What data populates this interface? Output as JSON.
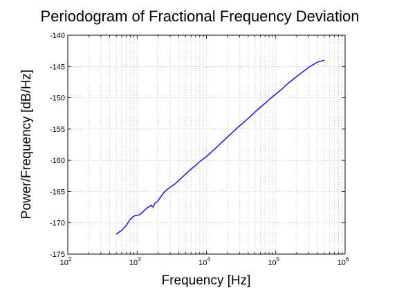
{
  "chart_data": {
    "type": "line",
    "title": "Periodogram of Fractional Frequency Deviation",
    "xlabel": "Frequency [Hz]",
    "ylabel": "Power/Frequency [dB/Hz]",
    "xscale": "log",
    "xlim": [
      100,
      1000000
    ],
    "ylim": [
      -175,
      -140
    ],
    "x_ticks": [
      {
        "base": "10",
        "exp": "2"
      },
      {
        "base": "10",
        "exp": "3"
      },
      {
        "base": "10",
        "exp": "4"
      },
      {
        "base": "10",
        "exp": "5"
      },
      {
        "base": "10",
        "exp": "6"
      }
    ],
    "y_ticks": [
      "-140",
      "-145",
      "-150",
      "-155",
      "-160",
      "-165",
      "-170",
      "-175"
    ],
    "grid": true,
    "legend": "none",
    "series": [
      {
        "color": "#0000ff",
        "x": [
          500,
          600,
          700,
          800,
          900,
          1000,
          1100,
          1200,
          1300,
          1400,
          1500,
          1600,
          1700,
          1800,
          2000,
          2200,
          2500,
          3000,
          3500,
          4000,
          5000,
          6000,
          7000,
          8000,
          10000,
          12000,
          15000,
          20000,
          25000,
          30000,
          40000,
          50000,
          60000,
          70000,
          80000,
          100000,
          120000,
          150000,
          200000,
          250000,
          300000,
          400000,
          500000
        ],
        "y": [
          -171.8,
          -171.2,
          -170.4,
          -169.4,
          -168.9,
          -168.8,
          -168.7,
          -168.3,
          -167.9,
          -167.6,
          -167.4,
          -167.2,
          -167.5,
          -166.9,
          -166.5,
          -165.8,
          -165.0,
          -164.3,
          -163.8,
          -163.2,
          -162.2,
          -161.4,
          -160.8,
          -160.2,
          -159.4,
          -158.6,
          -157.6,
          -156.3,
          -155.3,
          -154.5,
          -153.3,
          -152.3,
          -151.5,
          -150.9,
          -150.3,
          -149.4,
          -148.7,
          -147.7,
          -146.6,
          -145.8,
          -145.1,
          -144.3,
          -144.0
        ]
      }
    ]
  }
}
